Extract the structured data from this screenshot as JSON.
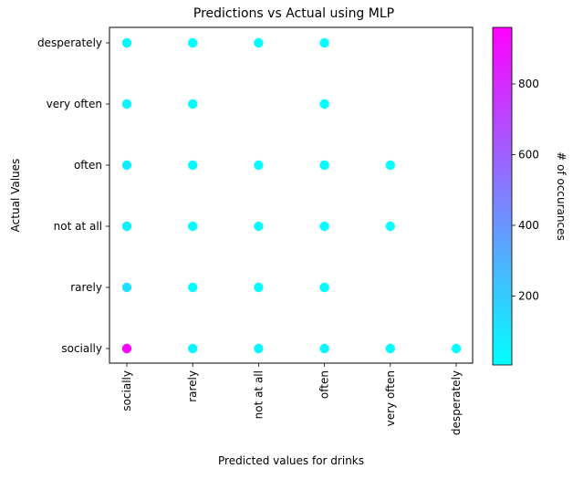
{
  "chart_data": {
    "type": "scatter",
    "title": "Predictions vs Actual using MLP",
    "xlabel": "Predicted values for drinks",
    "ylabel": "Actual Values",
    "categories": [
      "socially",
      "rarely",
      "not at all",
      "often",
      "very often",
      "desperately"
    ],
    "colormap": "cool",
    "colorbar": {
      "label": "# of occurances",
      "range": [
        5,
        960
      ],
      "ticks": [
        200,
        400,
        600,
        800
      ]
    },
    "grid": false,
    "points": [
      {
        "predicted": "socially",
        "actual": "socially",
        "count": 950
      },
      {
        "predicted": "rarely",
        "actual": "socially",
        "count": 45
      },
      {
        "predicted": "not at all",
        "actual": "socially",
        "count": 40
      },
      {
        "predicted": "often",
        "actual": "socially",
        "count": 40
      },
      {
        "predicted": "very often",
        "actual": "socially",
        "count": 8
      },
      {
        "predicted": "desperately",
        "actual": "socially",
        "count": 5
      },
      {
        "predicted": "socially",
        "actual": "rarely",
        "count": 120
      },
      {
        "predicted": "rarely",
        "actual": "rarely",
        "count": 25
      },
      {
        "predicted": "not at all",
        "actual": "rarely",
        "count": 10
      },
      {
        "predicted": "often",
        "actual": "rarely",
        "count": 12
      },
      {
        "predicted": "socially",
        "actual": "not at all",
        "count": 60
      },
      {
        "predicted": "rarely",
        "actual": "not at all",
        "count": 20
      },
      {
        "predicted": "not at all",
        "actual": "not at all",
        "count": 15
      },
      {
        "predicted": "often",
        "actual": "not at all",
        "count": 12
      },
      {
        "predicted": "very often",
        "actual": "not at all",
        "count": 5
      },
      {
        "predicted": "socially",
        "actual": "often",
        "count": 70
      },
      {
        "predicted": "rarely",
        "actual": "often",
        "count": 30
      },
      {
        "predicted": "not at all",
        "actual": "often",
        "count": 20
      },
      {
        "predicted": "often",
        "actual": "often",
        "count": 25
      },
      {
        "predicted": "very often",
        "actual": "often",
        "count": 5
      },
      {
        "predicted": "socially",
        "actual": "very often",
        "count": 45
      },
      {
        "predicted": "rarely",
        "actual": "very often",
        "count": 10
      },
      {
        "predicted": "often",
        "actual": "very often",
        "count": 10
      },
      {
        "predicted": "socially",
        "actual": "desperately",
        "count": 40
      },
      {
        "predicted": "rarely",
        "actual": "desperately",
        "count": 12
      },
      {
        "predicted": "not at all",
        "actual": "desperately",
        "count": 12
      },
      {
        "predicted": "often",
        "actual": "desperately",
        "count": 15
      }
    ]
  }
}
